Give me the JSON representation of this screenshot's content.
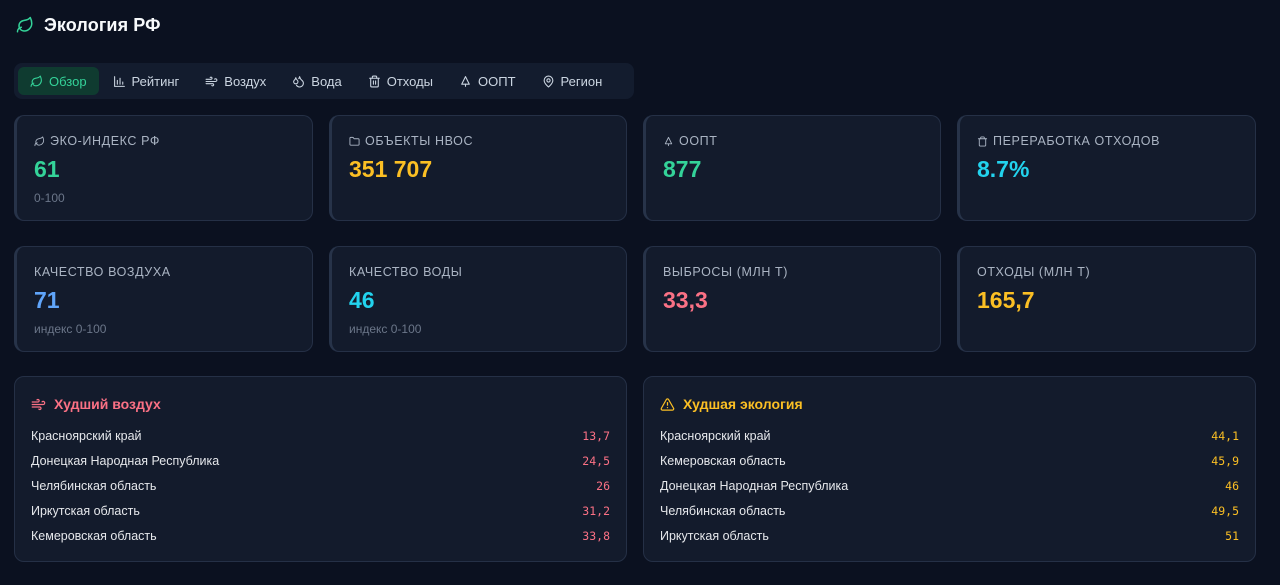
{
  "app": {
    "title": "Экология РФ",
    "logo_icon": "leaf-icon",
    "accent": "#34d399"
  },
  "nav": {
    "tabs": [
      {
        "label": "Обзор",
        "icon": "leaf-icon",
        "active": true
      },
      {
        "label": "Рейтинг",
        "icon": "bar-chart-icon",
        "active": false
      },
      {
        "label": "Воздух",
        "icon": "wind-icon",
        "active": false
      },
      {
        "label": "Вода",
        "icon": "droplets-icon",
        "active": false
      },
      {
        "label": "Отходы",
        "icon": "trash-icon",
        "active": false
      },
      {
        "label": "ООПТ",
        "icon": "tree-icon",
        "active": false
      },
      {
        "label": "Регион",
        "icon": "map-pin-icon",
        "active": false
      }
    ]
  },
  "stats_row1": [
    {
      "label": "ЭКО-ИНДЕКС РФ",
      "icon": "leaf-icon",
      "value": "61",
      "sub": "0-100",
      "color": "#34d399"
    },
    {
      "label": "ОБЪЕКТЫ НВОС",
      "icon": "folder-icon",
      "value": "351 707",
      "sub": "",
      "color": "#fbbf24"
    },
    {
      "label": "ООПТ",
      "icon": "tree-icon",
      "value": "877",
      "sub": "",
      "color": "#34d399"
    },
    {
      "label": "ПЕРЕРАБОТКА ОТХОДОВ",
      "icon": "trash-icon",
      "value": "8.7%",
      "sub": "",
      "color": "#22d3ee"
    }
  ],
  "stats_row2": [
    {
      "label": "КАЧЕСТВО ВОЗДУХА",
      "value": "71",
      "sub": "индекс 0-100",
      "color": "#60a5fa"
    },
    {
      "label": "КАЧЕСТВО ВОДЫ",
      "value": "46",
      "sub": "индекс 0-100",
      "color": "#22d3ee"
    },
    {
      "label": "ВЫБРОСЫ (МЛН Т)",
      "value": "33,3",
      "sub": "",
      "color": "#fb7185"
    },
    {
      "label": "ОТХОДЫ (МЛН Т)",
      "value": "165,7",
      "sub": "",
      "color": "#fbbf24"
    }
  ],
  "worst_air": {
    "title": "Худший воздух",
    "icon": "wind-icon",
    "color": "#fb7185",
    "rows": [
      {
        "name": "Красноярский край",
        "value": "13,7"
      },
      {
        "name": "Донецкая Народная Республика",
        "value": "24,5"
      },
      {
        "name": "Челябинская область",
        "value": "26"
      },
      {
        "name": "Иркутская область",
        "value": "31,2"
      },
      {
        "name": "Кемеровская область",
        "value": "33,8"
      }
    ]
  },
  "worst_eco": {
    "title": "Худшая экология",
    "icon": "warning-icon",
    "color": "#fbbf24",
    "rows": [
      {
        "name": "Красноярский край",
        "value": "44,1"
      },
      {
        "name": "Кемеровская область",
        "value": "45,9"
      },
      {
        "name": "Донецкая Народная Республика",
        "value": "46"
      },
      {
        "name": "Челябинская область",
        "value": "49,5"
      },
      {
        "name": "Иркутская область",
        "value": "51"
      }
    ]
  }
}
